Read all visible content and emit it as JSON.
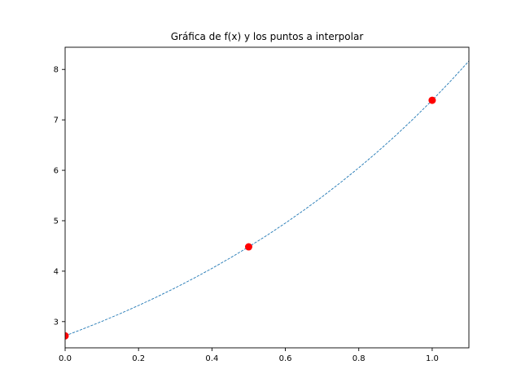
{
  "chart_data": {
    "type": "line",
    "title": "Gráfica de f(x) y los puntos a interpolar",
    "xlabel": "",
    "ylabel": "",
    "xlim": [
      0.0,
      1.1
    ],
    "ylim": [
      2.48,
      8.44
    ],
    "xticks": [
      "0.0",
      "0.2",
      "0.4",
      "0.6",
      "0.8",
      "1.0"
    ],
    "xtick_values": [
      0.0,
      0.2,
      0.4,
      0.6,
      0.8,
      1.0
    ],
    "yticks": [
      "3",
      "4",
      "5",
      "6",
      "7",
      "8"
    ],
    "ytick_values": [
      3,
      4,
      5,
      6,
      7,
      8
    ],
    "grid": false,
    "curve": {
      "style": "dashed",
      "color": "#1f77b4",
      "x": [
        0.0,
        0.05,
        0.1,
        0.15,
        0.2,
        0.25,
        0.3,
        0.35,
        0.4,
        0.45,
        0.5,
        0.55,
        0.6,
        0.65,
        0.7,
        0.75,
        0.8,
        0.85,
        0.9,
        0.95,
        1.0,
        1.05,
        1.1
      ],
      "y": [
        2.718,
        2.858,
        3.004,
        3.158,
        3.32,
        3.49,
        3.669,
        3.857,
        4.055,
        4.263,
        4.482,
        4.711,
        4.953,
        5.207,
        5.474,
        5.755,
        6.05,
        6.36,
        6.686,
        7.029,
        7.389,
        7.768,
        8.166
      ]
    },
    "points": {
      "color": "#ff0000",
      "x": [
        0.0,
        0.5,
        1.0
      ],
      "y": [
        2.718,
        4.482,
        7.389
      ]
    }
  }
}
